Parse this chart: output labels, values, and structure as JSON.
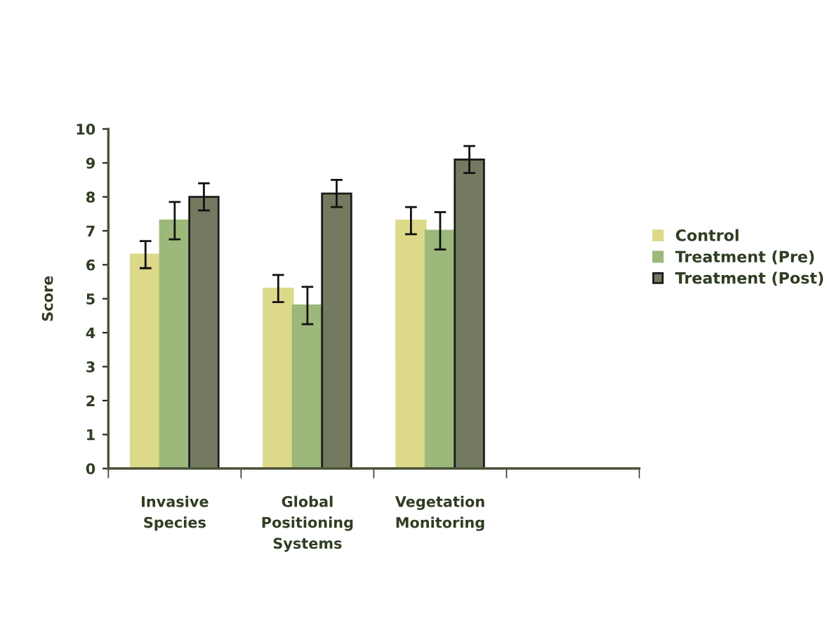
{
  "chart_data": {
    "type": "bar",
    "ylabel": "Score",
    "categories": [
      "Invasive Species",
      "Global Positioning Systems",
      "Vegetation Monitoring",
      null
    ],
    "series": [
      {
        "name": "Control",
        "color": "#dcd98a",
        "values": [
          6.3,
          5.3,
          7.3,
          null
        ],
        "errors": [
          0.4,
          0.4,
          0.4,
          null
        ]
      },
      {
        "name": "Treatment (Pre)",
        "color": "#9cb87a",
        "values": [
          7.3,
          4.8,
          7.0,
          null
        ],
        "errors": [
          0.55,
          0.55,
          0.55,
          null
        ]
      },
      {
        "name": "Treatment (Post)",
        "color": "#737a60",
        "values": [
          8.0,
          8.1,
          9.1,
          null
        ],
        "errors": [
          0.4,
          0.4,
          0.4,
          null
        ]
      }
    ],
    "ylim": [
      0,
      10
    ],
    "yticks": [
      0,
      1,
      2,
      3,
      4,
      5,
      6,
      7,
      8,
      9,
      10
    ],
    "grid": false,
    "legend": "right"
  }
}
